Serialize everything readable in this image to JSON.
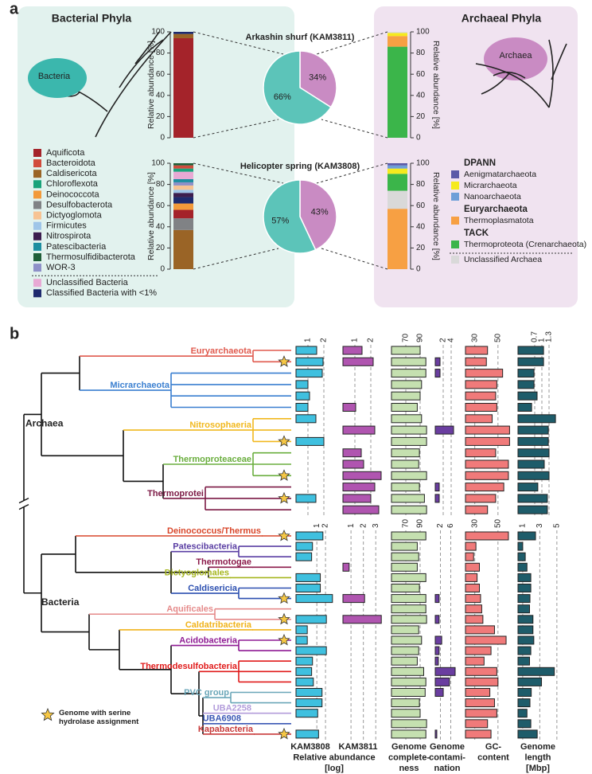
{
  "figure": {
    "panel_a_label": "a",
    "panel_b_label": "b"
  },
  "panel_a": {
    "bacteria_title": "Bacterial Phyla",
    "archaea_title": "Archaeal Phyla",
    "bacteria_icon_label": "Bacteria",
    "archaea_icon_label": "Archaea",
    "bacteria_legend": [
      {
        "name": "Aquificota",
        "color": "#a4232a"
      },
      {
        "name": "Bacteroidota",
        "color": "#d14b3c"
      },
      {
        "name": "Caldisericota",
        "color": "#9a6426"
      },
      {
        "name": "Chloroflexota",
        "color": "#1aa37a"
      },
      {
        "name": "Deinococcota",
        "color": "#f29a3a"
      },
      {
        "name": "Desulfobacterota",
        "color": "#808285"
      },
      {
        "name": "Dictyoglomota",
        "color": "#f7c393"
      },
      {
        "name": "Firmicutes",
        "color": "#9fc5e8"
      },
      {
        "name": "Nitrospirota",
        "color": "#3c1d4e"
      },
      {
        "name": "Patescibacteria",
        "color": "#1d8ea0"
      },
      {
        "name": "Thermosulfidibacterota",
        "color": "#1f5e38"
      },
      {
        "name": "WOR-3",
        "color": "#8e90c8"
      },
      {
        "name": "Unclassified Bacteria",
        "color": "#e8a9d4"
      },
      {
        "name": "Classified Bacteria with <1%",
        "color": "#1e2a6e"
      }
    ],
    "archaea_legend": [
      {
        "heading": "DPANN"
      },
      {
        "name": "Aenigmatarchaeota",
        "color": "#5b5aa8"
      },
      {
        "name": "Micrarchaeota",
        "color": "#f5ea1e"
      },
      {
        "name": "Nanoarchaeota",
        "color": "#6e9fd8"
      },
      {
        "heading": "Euryarchaeota"
      },
      {
        "name": "Thermoplasmatota",
        "color": "#f7a043"
      },
      {
        "heading": "TACK"
      },
      {
        "name": "Thermoproteota (Crenarchaeota)",
        "color": "#3bb54a"
      },
      {
        "name": "Unclassified Archaea",
        "color": "#d9d9d9"
      }
    ]
  },
  "panel_b": {
    "legend_label": "Genome with serine hydrolase assignment",
    "abundance_label": "Relative abundance",
    "abundance_unit": "[log]",
    "column_labels": [
      [
        "KAM3808"
      ],
      [
        "KAM3811"
      ],
      [
        "Genome",
        "complete-",
        "ness"
      ],
      [
        "Genome",
        "contami-",
        "nation"
      ],
      [
        "GC-",
        "content"
      ],
      [
        "Genome",
        "length",
        "[Mbp]"
      ]
    ],
    "sections": [
      {
        "name": "Archaea",
        "clades": [
          {
            "label": "Euryarchaeota",
            "color": "#e05a4e"
          },
          {
            "label": "Micrarchaeota",
            "color": "#3a7fd0"
          },
          {
            "label": "Nitrosophaeria",
            "color": "#f1b81e"
          },
          {
            "label": "Thermoproteaceae",
            "color": "#6aae3e"
          },
          {
            "label": "Thermoprotei",
            "color": "#7c1a45"
          }
        ],
        "serine_hydrolase": [
          false,
          true,
          false,
          false,
          false,
          false,
          false,
          false,
          true,
          false,
          false,
          true,
          false,
          true,
          false
        ]
      },
      {
        "name": "Bacteria",
        "clades": [
          {
            "label": "Deinococcus/Thermus",
            "color": "#d9472b"
          },
          {
            "label": "Patescibacteria",
            "color": "#5a3ea3"
          },
          {
            "label": "Thermotogae",
            "color": "#8b1a4a"
          },
          {
            "label": "Dictyoglomales",
            "color": "#a6b61f"
          },
          {
            "label": "Caldisericia",
            "color": "#2c4fb0"
          },
          {
            "label": "Aquificales",
            "color": "#e58a8a"
          },
          {
            "label": "Caldatribacteria",
            "color": "#f0b21a"
          },
          {
            "label": "Acidobacteria",
            "color": "#8e1a93"
          },
          {
            "label": "Thermodesulfobacteria",
            "color": "#e01b1b"
          },
          {
            "label": "PVC group",
            "color": "#6aa6b8"
          },
          {
            "label": "UBA2258",
            "color": "#b39ddb"
          },
          {
            "label": "UBA6908",
            "color": "#3b58b5"
          },
          {
            "label": "Kapabacteria",
            "color": "#c83a3a"
          }
        ],
        "serine_hydrolase": [
          true,
          false,
          false,
          false,
          false,
          false,
          true,
          false,
          true,
          false,
          true,
          false,
          false,
          false,
          false,
          false,
          false,
          false,
          false,
          true
        ]
      }
    ]
  },
  "chart_data": [
    {
      "type": "stacked-bar",
      "ylabel": "Relative abundance [%]",
      "ylim": [
        0,
        100
      ],
      "yticks": [
        0,
        20,
        40,
        60,
        80,
        100
      ],
      "series": [
        {
          "name": "Aquificota",
          "color": "#a4232a",
          "values": [
            94
          ]
        },
        {
          "name": "Caldisericota",
          "color": "#9a6426",
          "values": [
            4
          ]
        },
        {
          "name": "Classified Bacteria with <1%",
          "color": "#1e2a6e",
          "values": [
            2
          ]
        }
      ]
    },
    {
      "type": "stacked-bar",
      "ylabel": "Relative abundance [%]",
      "ylim": [
        0,
        100
      ],
      "yticks": [
        0,
        20,
        40,
        60,
        80,
        100
      ],
      "series": [
        {
          "name": "Caldisericota",
          "color": "#9a6426",
          "values": [
            37
          ]
        },
        {
          "name": "Desulfobacterota",
          "color": "#808285",
          "values": [
            11
          ]
        },
        {
          "name": "Aquificota",
          "color": "#a4232a",
          "values": [
            8
          ]
        },
        {
          "name": "Deinococcota",
          "color": "#f29a3a",
          "values": [
            6
          ]
        },
        {
          "name": "Classified Bacteria with <1%",
          "color": "#1e2a6e",
          "values": [
            6
          ]
        },
        {
          "name": "Nitrospirota",
          "color": "#3c1d4e",
          "values": [
            4
          ]
        },
        {
          "name": "Firmicutes",
          "color": "#9fc5e8",
          "values": [
            3
          ]
        },
        {
          "name": "Dictyoglomota",
          "color": "#f7c393",
          "values": [
            4
          ]
        },
        {
          "name": "WOR-3",
          "color": "#8e90c8",
          "values": [
            3
          ]
        },
        {
          "name": "Patescibacteria",
          "color": "#1d8ea0",
          "values": [
            3
          ]
        },
        {
          "name": "Unclassified Bacteria",
          "color": "#e8a9d4",
          "values": [
            7
          ]
        },
        {
          "name": "Chloroflexota",
          "color": "#1aa37a",
          "values": [
            3
          ]
        },
        {
          "name": "Bacteroidota",
          "color": "#d14b3c",
          "values": [
            3
          ]
        },
        {
          "name": "Thermosulfidibacterota",
          "color": "#1f5e38",
          "values": [
            2
          ]
        }
      ]
    },
    {
      "type": "pie",
      "title": "Arkashin shurf (KAM3811)",
      "values": [
        34,
        66
      ],
      "value_labels": [
        "34%",
        "66%"
      ],
      "colors": [
        "#c98bc3",
        "#5cc4b9"
      ]
    },
    {
      "type": "pie",
      "title": "Helicopter spring (KAM3808)",
      "values": [
        43,
        57
      ],
      "value_labels": [
        "43%",
        "57%"
      ],
      "colors": [
        "#c98bc3",
        "#5cc4b9"
      ]
    },
    {
      "type": "stacked-bar",
      "ylabel": "Relative abundance [%]",
      "ylim": [
        0,
        100
      ],
      "yticks": [
        0,
        20,
        40,
        60,
        80,
        100
      ],
      "series": [
        {
          "name": "Thermoproteota (Crenarchaeota)",
          "color": "#3bb54a",
          "values": [
            86
          ]
        },
        {
          "name": "Thermoplasmatota",
          "color": "#f7a043",
          "values": [
            10
          ]
        },
        {
          "name": "Micrarchaeota",
          "color": "#f5ea1e",
          "values": [
            3
          ]
        },
        {
          "name": "Unclassified Archaea",
          "color": "#d9d9d9",
          "values": [
            1
          ]
        }
      ]
    },
    {
      "type": "stacked-bar",
      "ylabel": "Relative abundance [%]",
      "ylim": [
        0,
        100
      ],
      "yticks": [
        0,
        20,
        40,
        60,
        80,
        100
      ],
      "series": [
        {
          "name": "Thermoplasmatota",
          "color": "#f7a043",
          "values": [
            57
          ]
        },
        {
          "name": "Unclassified Archaea",
          "color": "#d9d9d9",
          "values": [
            17
          ]
        },
        {
          "name": "Thermoproteota (Crenarchaeota)",
          "color": "#3bb54a",
          "values": [
            16
          ]
        },
        {
          "name": "Micrarchaeota",
          "color": "#f5ea1e",
          "values": [
            5
          ]
        },
        {
          "name": "Nanoarchaeota",
          "color": "#6e9fd8",
          "values": [
            3
          ]
        },
        {
          "name": "Aenigmatarchaeota",
          "color": "#5b5aa8",
          "values": [
            2
          ]
        }
      ]
    },
    {
      "type": "hbar-column",
      "color": "#3fc0df",
      "xlim": [
        0.25,
        2.75
      ],
      "xticks": [
        1,
        2
      ],
      "values": [
        1.55,
        1.95,
        1.9,
        1.0,
        1.1,
        1.0,
        1.5,
        null,
        2.0,
        null,
        null,
        null,
        null,
        1.5,
        null
      ]
    },
    {
      "type": "hbar-column",
      "color": "#b055b0",
      "xlim": [
        0.25,
        2.75
      ],
      "xticks": [
        1,
        2
      ],
      "values": [
        1.45,
        2.15,
        null,
        null,
        null,
        1.05,
        null,
        2.25,
        null,
        1.4,
        1.55,
        2.65,
        2.25,
        2.0,
        2.5
      ]
    },
    {
      "type": "hbar-column",
      "color": "#c5e0b0",
      "xlim": [
        50,
        100
      ],
      "xticks": [
        70,
        90
      ],
      "values": [
        90,
        98,
        98,
        92,
        90,
        86,
        92,
        99,
        99,
        89,
        88,
        99,
        89,
        96,
        99
      ]
    },
    {
      "type": "hbar-column",
      "color": "#6a3ea0",
      "xlim": [
        0,
        5
      ],
      "xticks": [
        2,
        4
      ],
      "values": [
        null,
        1.2,
        1.2,
        null,
        null,
        null,
        null,
        4.6,
        null,
        null,
        null,
        null,
        1.0,
        1.0,
        null
      ]
    },
    {
      "type": "hbar-column",
      "color": "#f07a7a",
      "xlim": [
        22,
        70
      ],
      "xticks": [
        30,
        50
      ],
      "values": [
        41,
        40,
        54,
        49,
        48,
        49,
        45,
        60,
        60,
        48,
        59,
        59,
        55,
        48,
        41
      ]
    },
    {
      "type": "hbar-column",
      "color": "#1e5c6a",
      "xlim": [
        0,
        1.8
      ],
      "xticks": [
        0.7,
        1,
        1.3
      ],
      "values": [
        1.07,
        1.07,
        0.67,
        0.67,
        0.8,
        0.57,
        1.57,
        1.27,
        1.27,
        1.3,
        1.1,
        1.3,
        0.83,
        1.23,
        1.23
      ]
    },
    {
      "type": "hbar-column",
      "color": "#3fc0df",
      "xlim": [
        -1.4,
        3
      ],
      "xticks": [
        1,
        2
      ],
      "values": [
        1.7,
        0.5,
        0.4,
        null,
        1.4,
        1.4,
        2.8,
        null,
        2.1,
        -0.1,
        -0.1,
        2.1,
        0.5,
        0.4,
        0.6,
        1.6,
        1.6,
        1.1,
        null,
        1.2
      ]
    },
    {
      "type": "hbar-column",
      "color": "#b055b0",
      "xlim": [
        0.35,
        3.5
      ],
      "xticks": [
        1,
        2,
        3
      ],
      "values": [
        null,
        null,
        null,
        0.85,
        null,
        null,
        2.1,
        null,
        3.45,
        null,
        null,
        null,
        null,
        null,
        null,
        null,
        null,
        null,
        null,
        null
      ]
    },
    {
      "type": "hbar-column",
      "color": "#c5e0b0",
      "xlim": [
        50,
        100
      ],
      "xticks": [
        70,
        90
      ],
      "values": [
        98,
        86,
        88,
        86,
        98,
        89,
        98,
        98,
        99,
        88,
        92,
        88,
        86,
        95,
        98,
        97,
        89,
        90,
        99,
        98
      ]
    },
    {
      "type": "hbar-column",
      "color": "#6a3ea0",
      "xlim": [
        0,
        8
      ],
      "xticks": [
        2,
        6
      ],
      "values": [
        null,
        null,
        null,
        null,
        null,
        null,
        1.5,
        null,
        1.5,
        null,
        2.5,
        1.5,
        1.2,
        7.7,
        5.5,
        3.1,
        null,
        null,
        null,
        0.6
      ]
    },
    {
      "type": "hbar-column",
      "color": "#f07a7a",
      "xlim": [
        22,
        70
      ],
      "xticks": [
        30,
        50
      ],
      "values": [
        59,
        31,
        29,
        34,
        32,
        34,
        35,
        36,
        37,
        47,
        57,
        44,
        38,
        49,
        50,
        43,
        47,
        49,
        41,
        44
      ]
    },
    {
      "type": "hbar-column",
      "color": "#1e5c6a",
      "xlim": [
        0.45,
        5.2
      ],
      "xticks": [
        1,
        3,
        5
      ],
      "values": [
        2.5,
        1.0,
        1.3,
        1.5,
        1.95,
        1.95,
        1.85,
        1.8,
        2.2,
        2.2,
        2.3,
        1.95,
        1.8,
        4.7,
        3.2,
        2.0,
        1.85,
        1.5,
        1.95,
        2.7
      ]
    }
  ]
}
